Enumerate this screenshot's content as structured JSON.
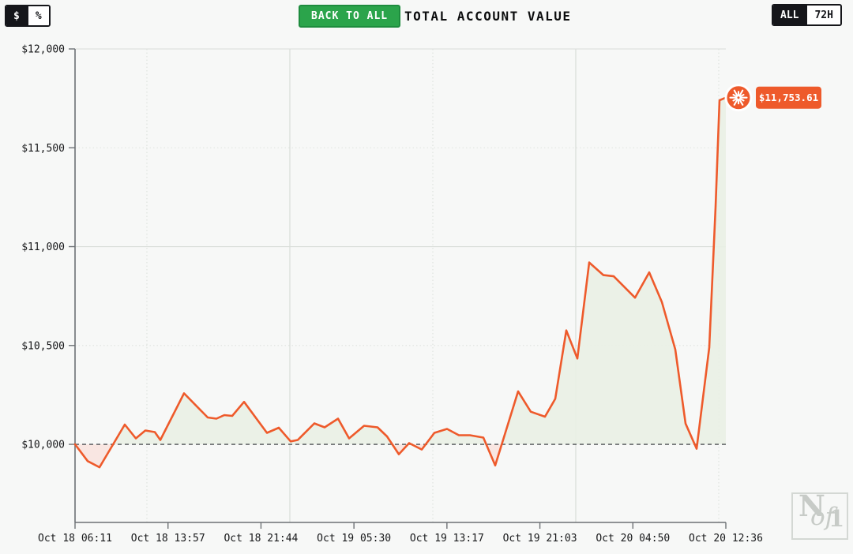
{
  "toolbar": {
    "currency_toggle": {
      "options": [
        {
          "label": "$",
          "selected": true
        },
        {
          "label": "%",
          "selected": false
        }
      ]
    },
    "back_button_label": "BACK TO ALL",
    "title": "TOTAL ACCOUNT VALUE",
    "range_toggle": {
      "options": [
        {
          "label": "ALL",
          "selected": true
        },
        {
          "label": "72H",
          "selected": false
        }
      ]
    }
  },
  "chart_data": {
    "type": "area",
    "title": "TOTAL ACCOUNT VALUE",
    "unit": "USD",
    "baseline_value": 10000,
    "end_value": 11753.61,
    "end_value_label": "$11,753.61",
    "legend": "none",
    "grid": "on",
    "y_axis": {
      "ticks": [
        {
          "label": "$12,000",
          "value": 12000
        },
        {
          "label": "$11,500",
          "value": 11500
        },
        {
          "label": "$11,000",
          "value": 11000
        },
        {
          "label": "$10,500",
          "value": 10500
        },
        {
          "label": "$10,000",
          "value": 10000
        }
      ],
      "visible_min": 9605,
      "visible_max": 12000
    },
    "x_axis": {
      "tick_labels": [
        "Oct 18 06:11",
        "Oct 18 13:57",
        "Oct 18 21:44",
        "Oct 19 05:30",
        "Oct 19 13:17",
        "Oct 19 21:03",
        "Oct 20 04:50",
        "Oct 20 12:36"
      ]
    },
    "series": [
      {
        "name": "Total Account Value",
        "color": "#ee5a2b",
        "points": [
          [
            95,
            10000
          ],
          [
            111,
            9915
          ],
          [
            126,
            9884
          ],
          [
            158,
            10100
          ],
          [
            172,
            10030
          ],
          [
            184,
            10070
          ],
          [
            196,
            10062
          ],
          [
            203,
            10022
          ],
          [
            233,
            10258
          ],
          [
            263,
            10136
          ],
          [
            274,
            10130
          ],
          [
            284,
            10148
          ],
          [
            294,
            10144
          ],
          [
            309,
            10215
          ],
          [
            338,
            10058
          ],
          [
            353,
            10084
          ],
          [
            368,
            10015
          ],
          [
            377,
            10022
          ],
          [
            398,
            10106
          ],
          [
            411,
            10086
          ],
          [
            428,
            10130
          ],
          [
            442,
            10030
          ],
          [
            461,
            10094
          ],
          [
            478,
            10086
          ],
          [
            490,
            10040
          ],
          [
            505,
            9950
          ],
          [
            518,
            10006
          ],
          [
            534,
            9974
          ],
          [
            550,
            10058
          ],
          [
            566,
            10078
          ],
          [
            581,
            10046
          ],
          [
            595,
            10046
          ],
          [
            612,
            10034
          ],
          [
            627,
            9893
          ],
          [
            656,
            10268
          ],
          [
            672,
            10165
          ],
          [
            690,
            10140
          ],
          [
            703,
            10230
          ],
          [
            717,
            10576
          ],
          [
            731,
            10434
          ],
          [
            746,
            10920
          ],
          [
            764,
            10856
          ],
          [
            777,
            10850
          ],
          [
            804,
            10742
          ],
          [
            822,
            10870
          ],
          [
            838,
            10720
          ],
          [
            855,
            10480
          ],
          [
            868,
            10105
          ],
          [
            882,
            9978
          ],
          [
            898,
            10490
          ],
          [
            906,
            11200
          ],
          [
            911,
            11740
          ],
          [
            919,
            11753.61
          ]
        ]
      }
    ],
    "colors": {
      "line": "#ee5a2b",
      "gain_fill": "#e9f0e5",
      "loss_fill": "#f9e4e0",
      "baseline": "#4d4f52",
      "grid_solid": "#d9ddd9",
      "grid_dotted": "#dfe3df",
      "axis": "#6d7175",
      "tick_text": "#17181a",
      "badge_bg": "#ee5a2b",
      "badge_text": "#ffffff"
    }
  },
  "watermark": {
    "letter_n": "N",
    "letters_of": "of",
    "digit_one": "1"
  }
}
